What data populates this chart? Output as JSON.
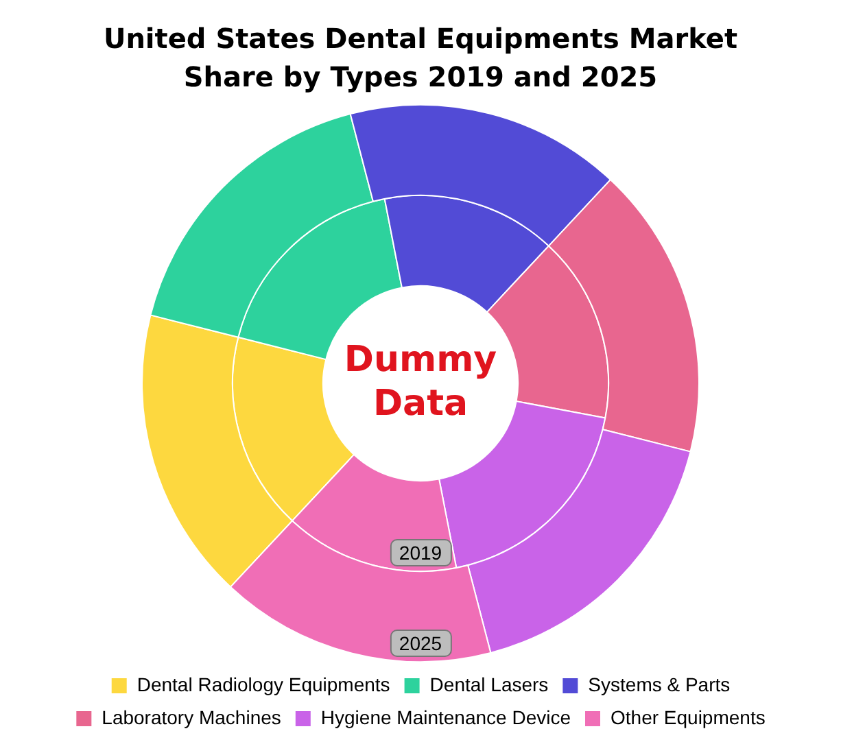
{
  "chart_data": {
    "type": "donut",
    "title": "United States Dental Equipments Market Share by Types 2019 and 2025",
    "categories": [
      "Dental Radiology Equipments",
      "Dental Lasers",
      "Systems & Parts",
      "Laboratory Machines",
      "Hygiene Maintenance Device",
      "Other Equipments"
    ],
    "colors": [
      "#fdd83f",
      "#2dd29d",
      "#524bd6",
      "#e8668f",
      "#c963e8",
      "#f06eb6"
    ],
    "series": [
      {
        "name": "2025",
        "values": [
          17,
          17,
          16,
          17,
          17,
          16
        ]
      },
      {
        "name": "2019",
        "values": [
          17,
          18,
          15,
          16,
          19,
          15
        ]
      }
    ],
    "annotations": [
      "Dummy Data"
    ],
    "legend": "bottom"
  }
}
